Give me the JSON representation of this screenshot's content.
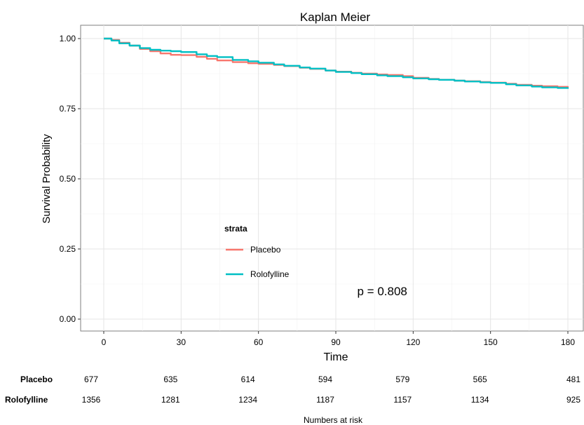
{
  "chart_data": {
    "type": "line",
    "title": "Kaplan Meier",
    "xlabel": "Time",
    "ylabel": "Survival Probability",
    "xlim": [
      0,
      180
    ],
    "ylim": [
      0,
      1
    ],
    "x_ticks": [
      0,
      30,
      60,
      90,
      120,
      150,
      180
    ],
    "y_ticks": [
      "0.00",
      "0.25",
      "0.50",
      "0.75",
      "1.00"
    ],
    "y_tick_values": [
      0,
      0.25,
      0.5,
      0.75,
      1.0
    ],
    "grid": true,
    "legend": {
      "title": "strata",
      "placement": "inside-center"
    },
    "annotation": "p = 0.808",
    "annotation_pos": {
      "x": 108,
      "y": 0.1
    },
    "series": [
      {
        "name": "Placebo",
        "color": "#F8766D",
        "x": [
          0,
          3,
          6,
          10,
          14,
          18,
          22,
          26,
          30,
          36,
          40,
          44,
          50,
          56,
          60,
          66,
          70,
          76,
          80,
          86,
          90,
          96,
          100,
          106,
          110,
          116,
          120,
          126,
          130,
          136,
          140,
          146,
          150,
          156,
          160,
          166,
          170,
          176,
          180
        ],
        "y": [
          1.0,
          0.995,
          0.985,
          0.975,
          0.963,
          0.955,
          0.947,
          0.942,
          0.941,
          0.935,
          0.928,
          0.922,
          0.916,
          0.912,
          0.91,
          0.906,
          0.902,
          0.896,
          0.892,
          0.886,
          0.882,
          0.878,
          0.875,
          0.872,
          0.87,
          0.866,
          0.86,
          0.856,
          0.853,
          0.85,
          0.848,
          0.845,
          0.843,
          0.839,
          0.835,
          0.832,
          0.83,
          0.828,
          0.826
        ]
      },
      {
        "name": "Rolofylline",
        "color": "#00BFC4",
        "x": [
          0,
          3,
          6,
          10,
          14,
          18,
          22,
          26,
          30,
          36,
          40,
          44,
          50,
          56,
          60,
          66,
          70,
          76,
          80,
          86,
          90,
          96,
          100,
          106,
          110,
          116,
          120,
          126,
          130,
          136,
          140,
          146,
          150,
          156,
          160,
          166,
          170,
          176,
          180
        ],
        "y": [
          1.0,
          0.993,
          0.983,
          0.975,
          0.966,
          0.96,
          0.957,
          0.955,
          0.952,
          0.944,
          0.938,
          0.934,
          0.924,
          0.919,
          0.914,
          0.908,
          0.903,
          0.897,
          0.893,
          0.886,
          0.881,
          0.877,
          0.873,
          0.869,
          0.866,
          0.862,
          0.858,
          0.855,
          0.853,
          0.85,
          0.847,
          0.844,
          0.842,
          0.837,
          0.833,
          0.829,
          0.826,
          0.824,
          0.821
        ]
      }
    ]
  },
  "risk_table": {
    "title": "Numbers at risk",
    "times": [
      0,
      30,
      60,
      90,
      120,
      150,
      180
    ],
    "rows": [
      {
        "label": "Placebo",
        "values": [
          "677",
          "635",
          "614",
          "594",
          "579",
          "565",
          "481"
        ]
      },
      {
        "label": "Rolofylline",
        "values": [
          "1356",
          "1281",
          "1234",
          "1187",
          "1157",
          "1134",
          "925"
        ]
      }
    ]
  }
}
